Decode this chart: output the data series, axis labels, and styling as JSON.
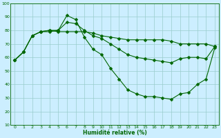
{
  "xlabel": "Humidité relative (%)",
  "background_color": "#cceeff",
  "grid_color": "#99cccc",
  "line_color": "#006600",
  "xlim": [
    -0.5,
    23.5
  ],
  "ylim": [
    10,
    100
  ],
  "yticks": [
    10,
    20,
    30,
    40,
    50,
    60,
    70,
    80,
    90,
    100
  ],
  "xticks": [
    0,
    1,
    2,
    3,
    4,
    5,
    6,
    7,
    8,
    9,
    10,
    11,
    12,
    13,
    14,
    15,
    16,
    17,
    18,
    19,
    20,
    21,
    22,
    23
  ],
  "line1_x": [
    0,
    1,
    2,
    3,
    4,
    5,
    6,
    7,
    8,
    9,
    10,
    11,
    12,
    13,
    14,
    15,
    16,
    17,
    18,
    19,
    20,
    21,
    22,
    23
  ],
  "line1_y": [
    58,
    64,
    76,
    79,
    79,
    80,
    91,
    88,
    75,
    66,
    62,
    52,
    44,
    36,
    33,
    31,
    31,
    30,
    29,
    33,
    34,
    40,
    44,
    67
  ],
  "line2_x": [
    0,
    1,
    2,
    3,
    4,
    5,
    6,
    7,
    8,
    9,
    10,
    11,
    12,
    13,
    14,
    15,
    16,
    17,
    18,
    19,
    20,
    21,
    22,
    23
  ],
  "line2_y": [
    58,
    64,
    76,
    79,
    80,
    79,
    79,
    79,
    79,
    78,
    76,
    75,
    74,
    73,
    73,
    73,
    73,
    73,
    72,
    70,
    70,
    70,
    70,
    68
  ],
  "line3_x": [
    0,
    1,
    2,
    3,
    4,
    5,
    6,
    7,
    8,
    9,
    10,
    11,
    12,
    13,
    14,
    15,
    16,
    17,
    18,
    19,
    20,
    21,
    22,
    23
  ],
  "line3_y": [
    58,
    64,
    76,
    79,
    80,
    80,
    86,
    85,
    80,
    76,
    74,
    70,
    66,
    62,
    60,
    59,
    58,
    57,
    56,
    59,
    60,
    60,
    59,
    68
  ],
  "marker": "D",
  "markersize": 2.5,
  "linewidth": 0.8,
  "tick_fontsize": 4.5,
  "xlabel_fontsize": 5.5
}
